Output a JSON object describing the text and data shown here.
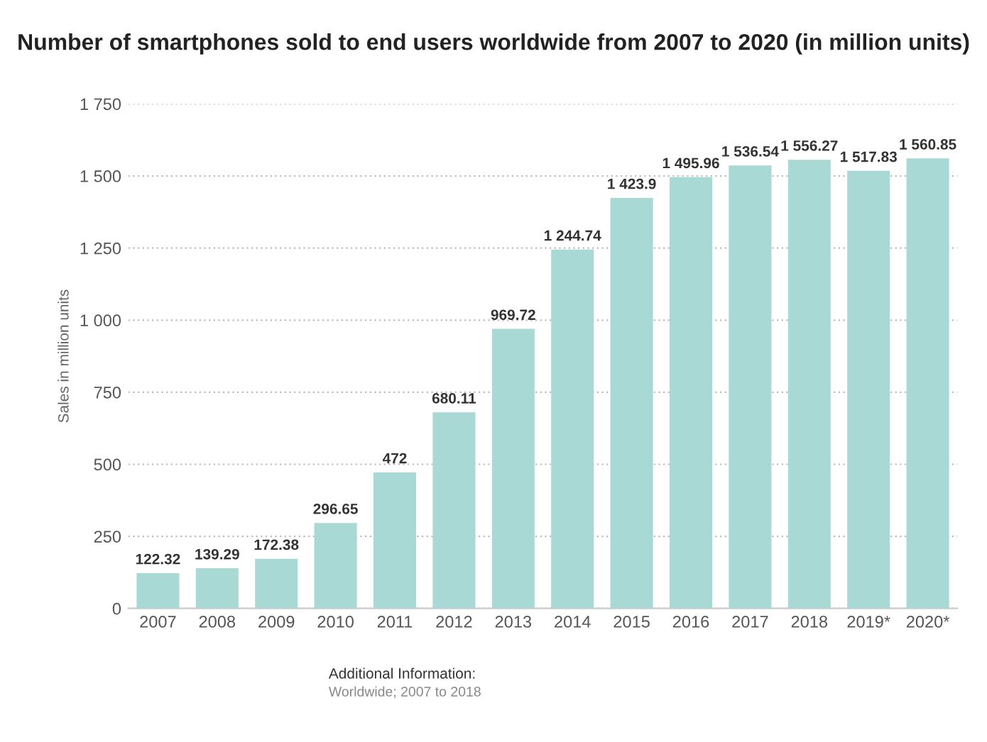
{
  "chart_data": {
    "type": "bar",
    "title": "Number of smartphones sold to end users worldwide from 2007 to 2020 (in million units)",
    "ylabel": "Sales in million units",
    "categories": [
      "2007",
      "2008",
      "2009",
      "2010",
      "2011",
      "2012",
      "2013",
      "2014",
      "2015",
      "2016",
      "2017",
      "2018",
      "2019*",
      "2020*"
    ],
    "values": [
      122.32,
      139.29,
      172.38,
      296.65,
      472,
      680.11,
      969.72,
      1244.74,
      1423.9,
      1495.96,
      1536.54,
      1556.27,
      1517.83,
      1560.85
    ],
    "value_labels": [
      "122.32",
      "139.29",
      "172.38",
      "296.65",
      "472",
      "680.11",
      "969.72",
      "1 244.74",
      "1 423.9",
      "1 495.96",
      "1 536.54",
      "1 556.27",
      "1 517.83",
      "1 560.85"
    ],
    "color": "#a8d9d5",
    "ylim": [
      0,
      1750
    ],
    "yticks": [
      0,
      250,
      500,
      750,
      {
        "value": 1000,
        "label": "1 000"
      },
      {
        "value": 1250,
        "label": "1 250"
      },
      {
        "value": 1500,
        "label": "1 500"
      },
      {
        "value": 1750,
        "label": "1 750"
      }
    ],
    "grid": "y",
    "annotations": [
      "Additional Information:",
      "Worldwide; 2007 to 2018"
    ]
  }
}
